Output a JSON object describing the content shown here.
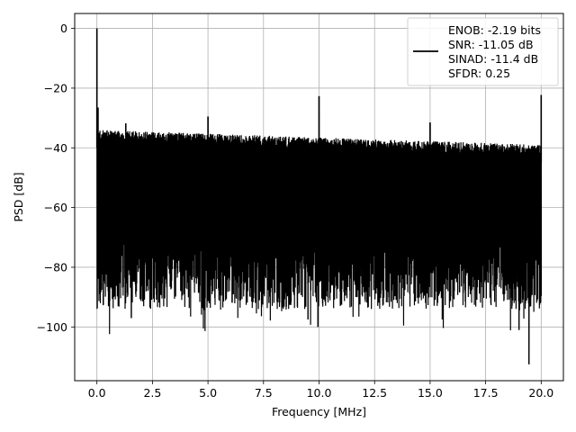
{
  "chart_data": {
    "type": "line",
    "title": "",
    "xlabel": "Frequency [MHz]",
    "ylabel": "PSD [dB]",
    "xlim": [
      -1.0,
      21.0
    ],
    "ylim": [
      -118,
      5
    ],
    "x_ticks": [
      0.0,
      2.5,
      5.0,
      7.5,
      10.0,
      12.5,
      15.0,
      17.5,
      20.0
    ],
    "x_tick_labels": [
      "0.0",
      "2.5",
      "5.0",
      "7.5",
      "10.0",
      "12.5",
      "15.0",
      "17.5",
      "20.0"
    ],
    "y_ticks": [
      0,
      -20,
      -40,
      -60,
      -80,
      -100
    ],
    "y_tick_labels": [
      "0",
      "−20",
      "−40",
      "−60",
      "−80",
      "−100"
    ],
    "grid": true,
    "legend_position": "top-right",
    "line_color": "#000000",
    "series": [
      {
        "legend_lines": [
          "ENOB: -2.19 bits",
          "SNR: -11.05 dB",
          "SINAD: -11.4 dB",
          "SFDR: 0.25"
        ],
        "noise_floor": {
          "x_start": 0.0,
          "x_end": 20.0,
          "top_at_start": -34,
          "top_at_end": -39,
          "center_db": -58,
          "typical_min_db": -82
        },
        "peaks": [
          {
            "x": 0.0,
            "y": 0.0
          },
          {
            "x": 0.05,
            "y": -26.5
          },
          {
            "x": 1.3,
            "y": -31.8
          },
          {
            "x": 5.0,
            "y": -29.5
          },
          {
            "x": 10.0,
            "y": -22.7
          },
          {
            "x": 15.0,
            "y": -31.5
          },
          {
            "x": 20.0,
            "y": -22.3
          }
        ],
        "dips": [
          {
            "x": 1.55,
            "y": -97
          },
          {
            "x": 9.95,
            "y": -100
          },
          {
            "x": 9.5,
            "y": -97.5
          },
          {
            "x": 15.55,
            "y": -97.5
          },
          {
            "x": 19.0,
            "y": -101
          },
          {
            "x": 19.45,
            "y": -112.5
          }
        ]
      }
    ]
  }
}
